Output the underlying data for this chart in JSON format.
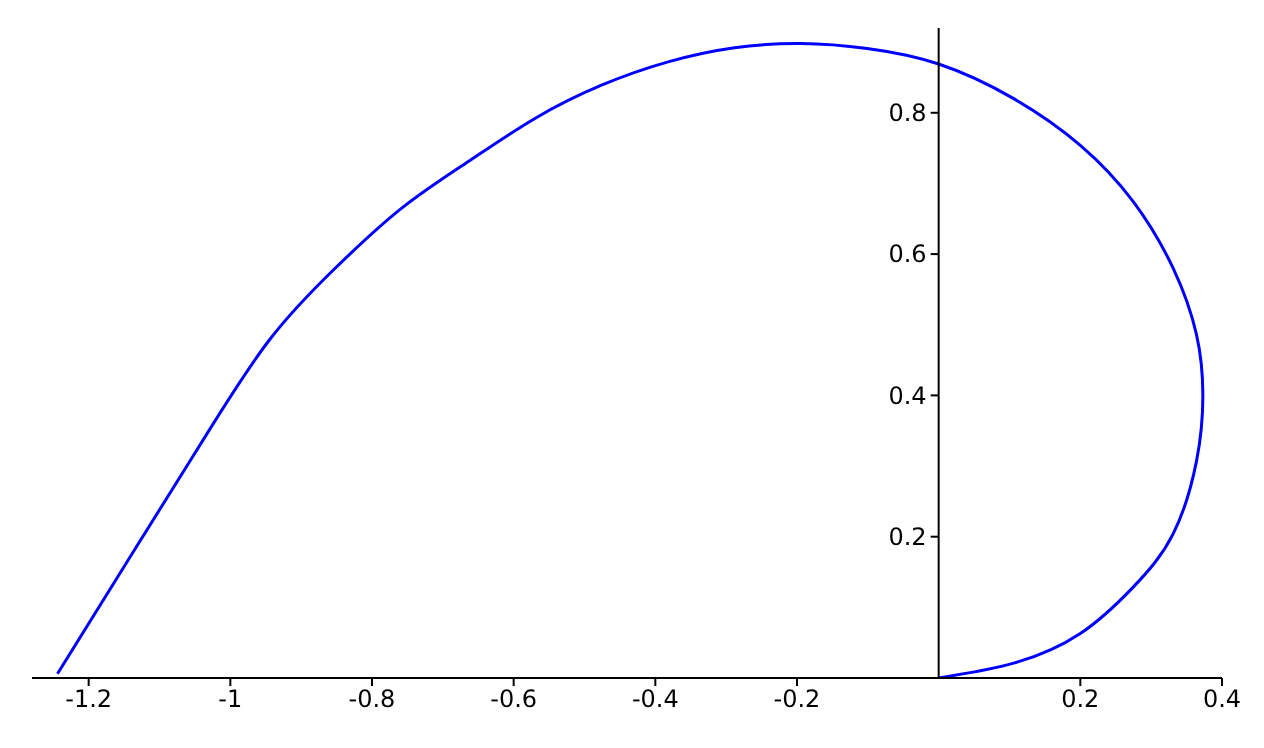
{
  "chart_data": {
    "type": "line",
    "series": [
      {
        "color": "#0000ff",
        "x": [
          -1.244,
          -1.133,
          -1.039,
          -0.946,
          -0.852,
          -0.758,
          -0.664,
          -0.57,
          -0.476,
          -0.382,
          -0.288,
          -0.194,
          -0.101,
          0,
          0.106,
          0.2,
          0.275,
          0.331,
          0.364,
          0.373,
          0.364,
          0.331,
          0.275,
          0.2,
          0.106,
          0
        ],
        "values": [
          0.006,
          0.185,
          0.336,
          0.477,
          0.58,
          0.665,
          0.731,
          0.792,
          0.839,
          0.872,
          0.892,
          0.898,
          0.891,
          0.869,
          0.82,
          0.754,
          0.674,
          0.58,
          0.486,
          0.4,
          0.307,
          0.204,
          0.129,
          0.063,
          0.021,
          0
        ]
      }
    ],
    "xlim": [
      -1.28,
      0.4
    ],
    "ylim": [
      0,
      0.92
    ],
    "xticks": [
      -1.2,
      -1,
      -0.8,
      -0.6,
      -0.4,
      -0.2,
      0.2,
      0.4
    ],
    "yticks": [
      0.2,
      0.4,
      0.6,
      0.8
    ],
    "marker": "none",
    "grid": false
  }
}
